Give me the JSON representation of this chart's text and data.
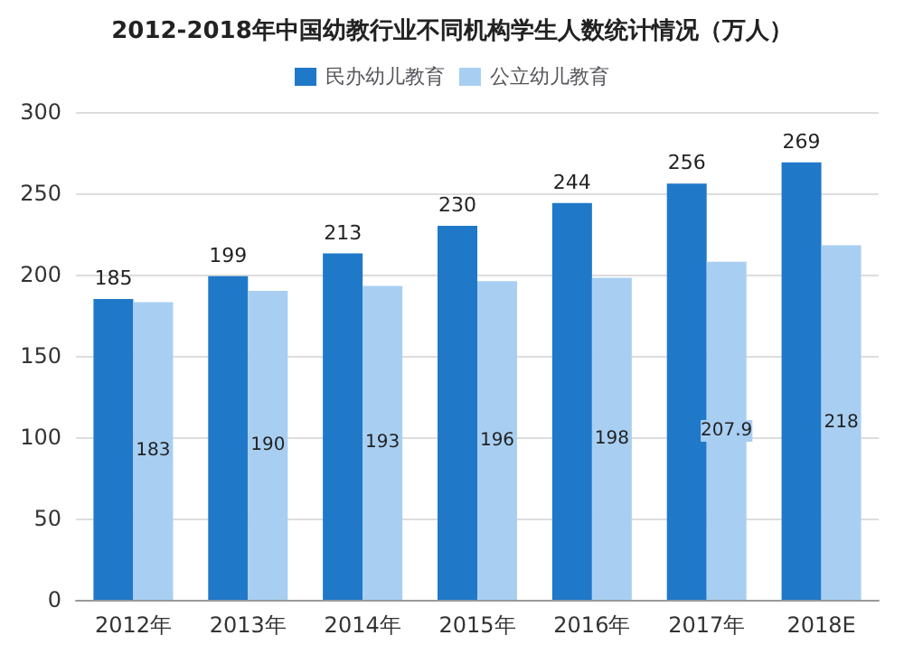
{
  "chart_data": {
    "type": "bar",
    "title": "2012-2018年中国幼教行业不同机构学生人数统计情况（万人）",
    "categories": [
      "2012年",
      "2013年",
      "2014年",
      "2015年",
      "2016年",
      "2017年",
      "2018E"
    ],
    "series": [
      {
        "name": "民办幼儿教育",
        "color": "#1f78c8",
        "values": [
          185,
          199,
          213,
          230,
          244,
          256,
          269
        ]
      },
      {
        "name": "公立幼儿教育",
        "color": "#a8cff2",
        "values": [
          183,
          190,
          193,
          196,
          198,
          207.9,
          218
        ]
      }
    ],
    "ylim": [
      0,
      300
    ],
    "yticks": [
      0,
      50,
      100,
      150,
      200,
      250,
      300
    ],
    "grid": "y",
    "legend": "top",
    "data_labels": true
  }
}
